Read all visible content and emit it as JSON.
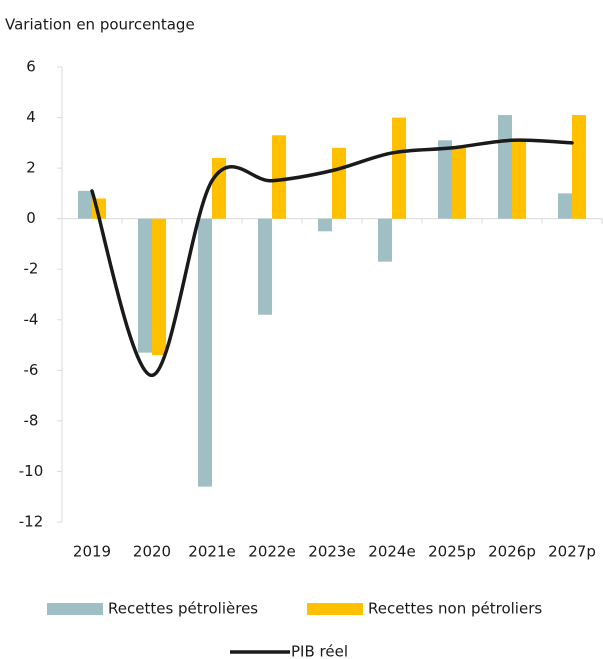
{
  "chart_data": {
    "type": "bar",
    "y_axis_label": "Variation en pourcentage",
    "categories": [
      "2019",
      "2020",
      "2021e",
      "2022e",
      "2023e",
      "2024e",
      "2025p",
      "2026p",
      "2027p"
    ],
    "series": [
      {
        "name": "Recettes pétrolières",
        "color": "#a0bfc5",
        "values": [
          1.1,
          -5.3,
          -10.6,
          -3.8,
          -0.5,
          -1.7,
          3.1,
          4.1,
          1.0
        ]
      },
      {
        "name": "Recettes non pétroliers",
        "color": "#ffc000",
        "values": [
          0.8,
          -5.4,
          2.4,
          3.3,
          2.8,
          4.0,
          2.8,
          3.1,
          4.1
        ]
      },
      {
        "name": "PIB réel",
        "type": "line",
        "color": "#1a1a1a",
        "values": [
          1.1,
          -6.2,
          1.5,
          1.5,
          1.9,
          2.6,
          2.8,
          3.1,
          3.0
        ]
      }
    ],
    "ylim": [
      -12,
      6
    ],
    "yticks": [
      -12,
      -10,
      -8,
      -6,
      -4,
      -2,
      0,
      2,
      4,
      6
    ],
    "grid": false
  }
}
